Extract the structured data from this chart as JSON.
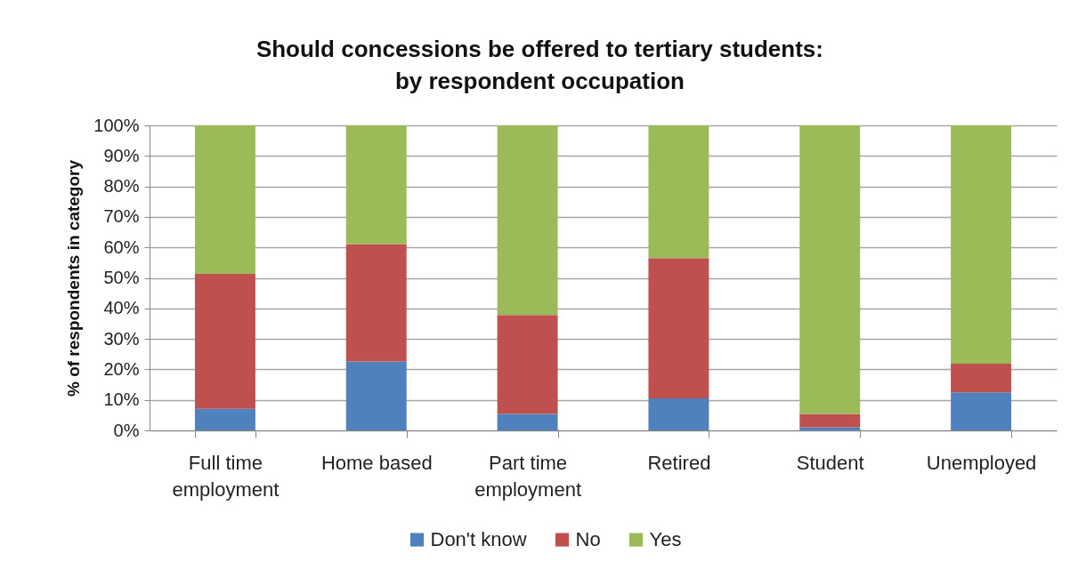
{
  "chart_data": {
    "type": "bar",
    "title": "Should concessions be offered to tertiary students: by respondent occupation",
    "ylabel": "% of respondents in category",
    "categories": [
      "Full time employment",
      "Home based",
      "Part time employment",
      "Retired",
      "Student",
      "Unemployed"
    ],
    "series": [
      {
        "name": "Don't know",
        "color": "#4f81bd",
        "values": [
          7.1,
          22.6,
          5.4,
          10.5,
          1.0,
          12.5
        ]
      },
      {
        "name": "No",
        "color": "#c0504d",
        "values": [
          44.2,
          38.5,
          32.4,
          46.0,
          4.4,
          9.4
        ]
      },
      {
        "name": "Yes",
        "color": "#9bbb59",
        "values": [
          48.7,
          38.9,
          62.2,
          43.5,
          94.6,
          78.1
        ]
      }
    ],
    "stacked": true,
    "ylim": [
      0,
      100
    ],
    "yticks": [
      {
        "value": 0,
        "label": "0%"
      },
      {
        "value": 10,
        "label": "10%"
      },
      {
        "value": 20,
        "label": "20%"
      },
      {
        "value": 30,
        "label": "30%"
      },
      {
        "value": 40,
        "label": "40%"
      },
      {
        "value": 50,
        "label": "50%"
      },
      {
        "value": 60,
        "label": "60%"
      },
      {
        "value": 70,
        "label": "70%"
      },
      {
        "value": 80,
        "label": "80%"
      },
      {
        "value": 90,
        "label": "90%"
      },
      {
        "value": 100,
        "label": "100%"
      }
    ],
    "grid": "y",
    "legend": "bottom"
  }
}
